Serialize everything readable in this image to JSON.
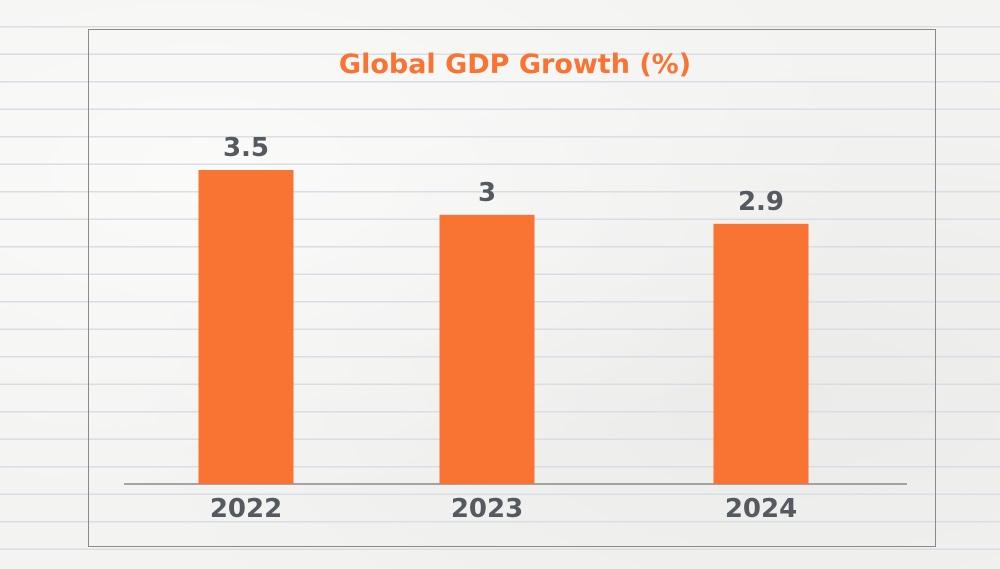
{
  "colors": {
    "bar": "#f97432",
    "title": "#f97432",
    "text": "#555a60",
    "axis": "#8a8a8a"
  },
  "chart_data": {
    "type": "bar",
    "title": "Global GDP Growth (%)",
    "xlabel": "",
    "ylabel": "",
    "categories": [
      "2022",
      "2023",
      "2024"
    ],
    "values": [
      3.5,
      3,
      2.9
    ],
    "value_labels": [
      "3.5",
      "3",
      "2.9"
    ],
    "ylim": [
      0,
      3.5
    ],
    "grid": false,
    "legend": "none"
  }
}
